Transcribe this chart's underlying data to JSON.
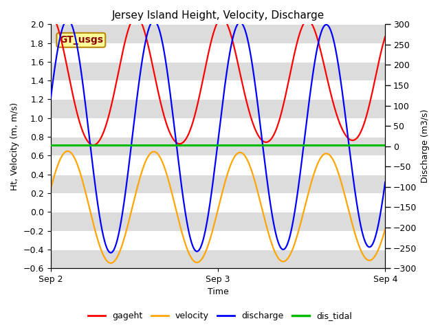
{
  "title": "Jersey Island Height, Velocity, Discharge",
  "xlabel": "Time",
  "ylabel_left": "Ht, Velocity (m, m/s)",
  "ylabel_right": "Discharge (m3/s)",
  "xlim": [
    0,
    2.0
  ],
  "ylim_left": [
    -0.6,
    2.0
  ],
  "ylim_right": [
    -300,
    300
  ],
  "xtick_labels": [
    "Sep 2",
    "Sep 3",
    "Sep 4"
  ],
  "xtick_positions": [
    0.0,
    1.0,
    2.0
  ],
  "annotation_text": "GT_usgs",
  "background_color": "#ffffff",
  "band_color": "#dcdcdc",
  "colors": {
    "gageht": "#ff0000",
    "velocity": "#ffa500",
    "discharge": "#0000ff",
    "dis_tidal": "#00bb00"
  },
  "line_widths": {
    "gageht": 1.6,
    "velocity": 1.6,
    "discharge": 1.6,
    "dis_tidal": 2.2
  },
  "yticks_left": [
    -0.6,
    -0.4,
    -0.2,
    0.0,
    0.2,
    0.4,
    0.6,
    0.8,
    1.0,
    1.2,
    1.4,
    1.6,
    1.8,
    2.0
  ],
  "yticks_right": [
    -300,
    -250,
    -200,
    -150,
    -100,
    -50,
    0,
    50,
    100,
    150,
    200,
    250,
    300
  ]
}
